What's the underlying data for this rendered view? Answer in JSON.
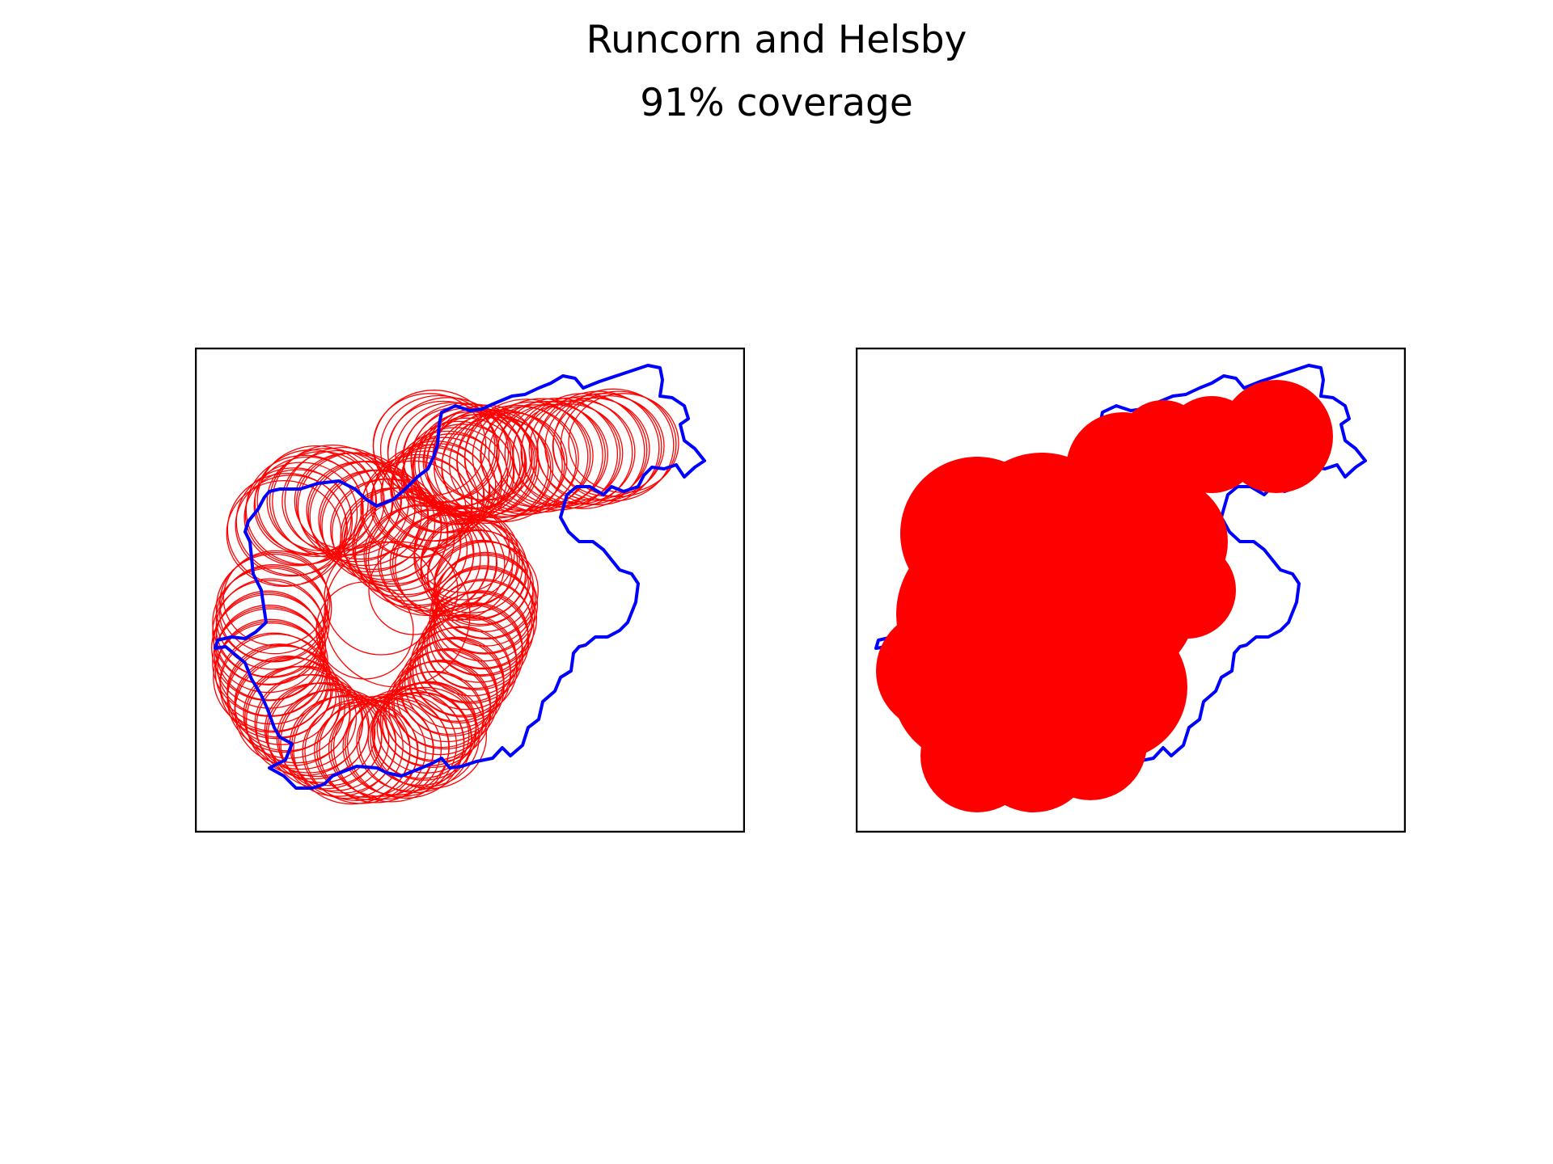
{
  "figure": {
    "title": "Runcorn and Helsby",
    "subtitle": "91% coverage"
  },
  "colors": {
    "boundary": "#0000ff",
    "coverage": "#ff0000",
    "frame": "#000000",
    "background": "#ffffff"
  },
  "panels": [
    {
      "name": "coverage-circles-outline",
      "style": "outline"
    },
    {
      "name": "coverage-circles-filled",
      "style": "filled"
    }
  ]
}
